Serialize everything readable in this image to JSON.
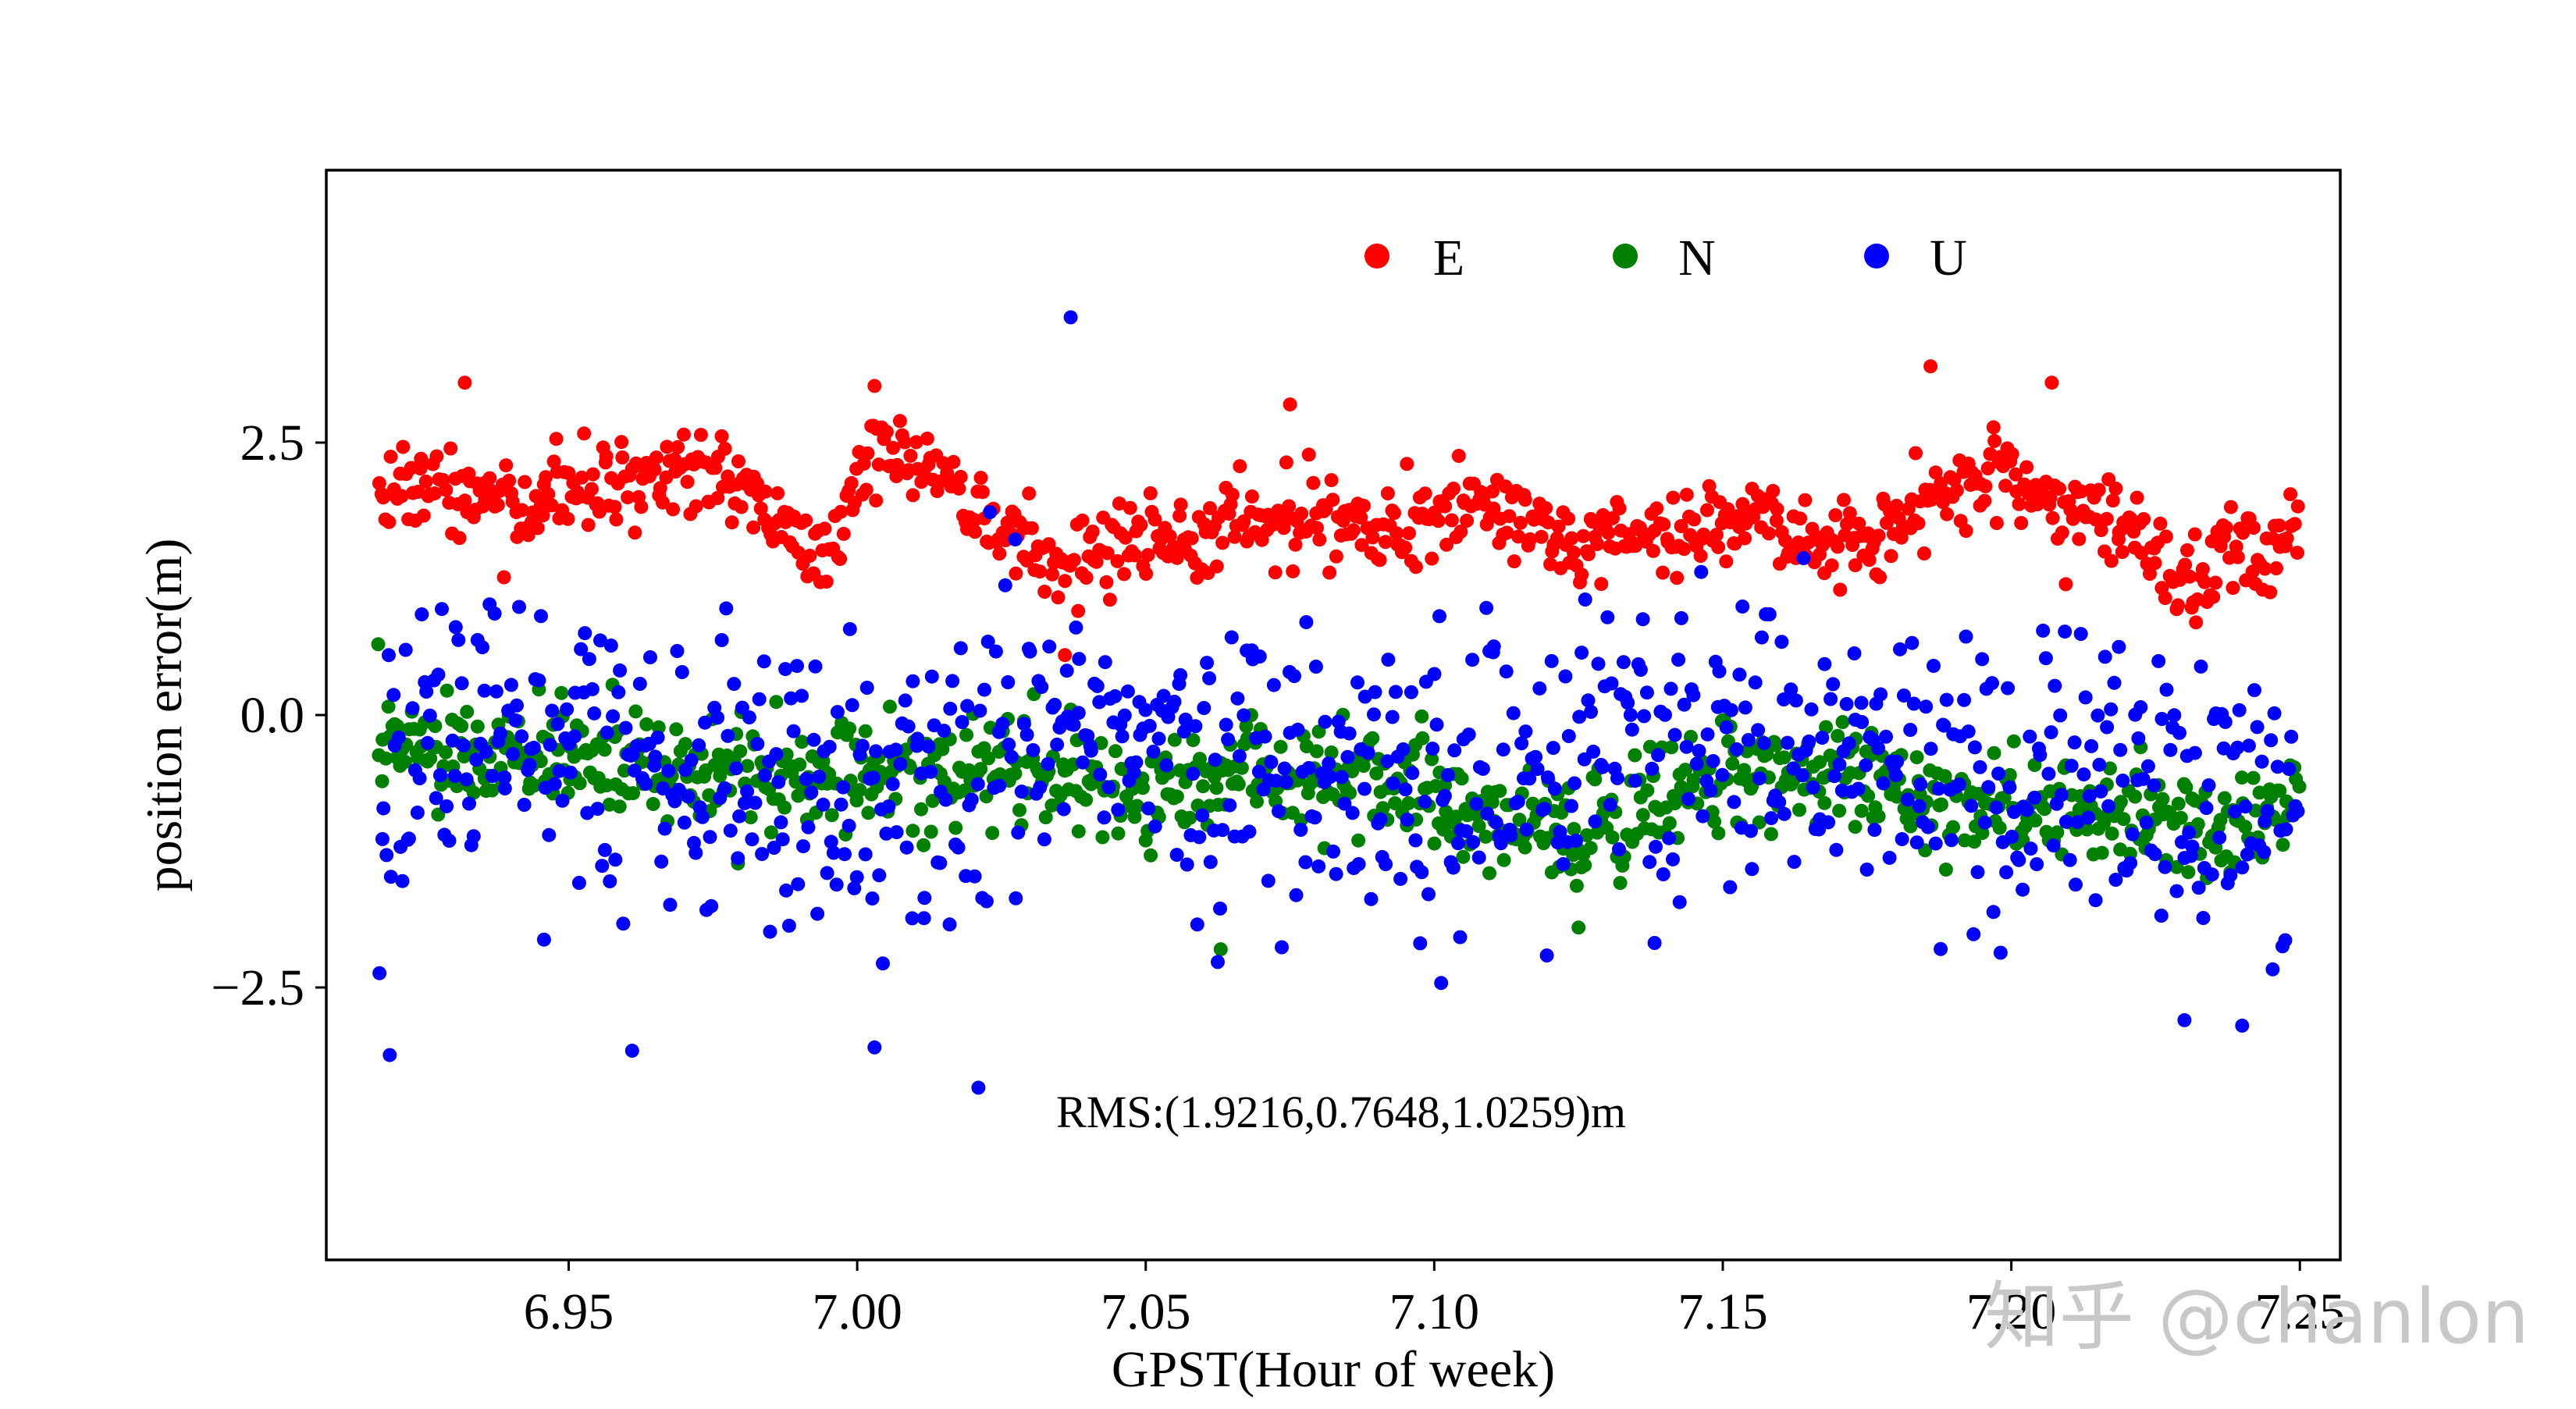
{
  "chart_data": {
    "type": "scatter",
    "title": "",
    "xlabel": "GPST(Hour of week)",
    "ylabel": "position error(m)",
    "xlim": [
      6.908,
      7.257
    ],
    "ylim": [
      -5.0,
      5.0
    ],
    "xticks": [
      6.95,
      7.0,
      7.05,
      7.1,
      7.15,
      7.2,
      7.25
    ],
    "xtick_labels": [
      "6.95",
      "7.00",
      "7.05",
      "7.10",
      "7.15",
      "7.20",
      "7.25"
    ],
    "yticks": [
      2.5,
      0.0,
      -2.5
    ],
    "ytick_labels": [
      "2.5",
      "0.0",
      "−2.5"
    ],
    "grid": false,
    "legend_position": "top-center",
    "x_range_data": [
      6.917,
      7.25
    ],
    "series": [
      {
        "name": "E",
        "color": "#ff0000",
        "point_count": 860,
        "trend": [
          [
            6.917,
            2.2
          ],
          [
            6.93,
            2.1
          ],
          [
            6.94,
            1.9
          ],
          [
            6.95,
            2.05
          ],
          [
            6.96,
            2.1
          ],
          [
            6.97,
            2.3
          ],
          [
            6.98,
            2.05
          ],
          [
            6.99,
            1.6
          ],
          [
            6.995,
            1.5
          ],
          [
            7.0,
            2.25
          ],
          [
            7.005,
            2.45
          ],
          [
            7.015,
            2.2
          ],
          [
            7.025,
            1.6
          ],
          [
            7.035,
            1.35
          ],
          [
            7.045,
            1.55
          ],
          [
            7.06,
            1.7
          ],
          [
            7.075,
            1.85
          ],
          [
            7.09,
            1.75
          ],
          [
            7.1,
            1.8
          ],
          [
            7.11,
            1.9
          ],
          [
            7.125,
            1.55
          ],
          [
            7.14,
            1.6
          ],
          [
            7.155,
            1.85
          ],
          [
            7.17,
            1.6
          ],
          [
            7.18,
            1.8
          ],
          [
            7.19,
            2.05
          ],
          [
            7.2,
            2.25
          ],
          [
            7.21,
            1.85
          ],
          [
            7.22,
            1.7
          ],
          [
            7.23,
            1.15
          ],
          [
            7.24,
            1.55
          ],
          [
            7.25,
            1.5
          ]
        ],
        "spread": 0.33,
        "outliers": [
          [
            6.932,
            3.05
          ],
          [
            7.003,
            3.02
          ],
          [
            7.075,
            2.85
          ],
          [
            7.186,
            3.2
          ],
          [
            7.207,
            3.05
          ],
          [
            7.232,
            0.85
          ],
          [
            7.036,
            0.55
          ]
        ]
      },
      {
        "name": "N",
        "color": "#008000",
        "point_count": 900,
        "trend": [
          [
            6.917,
            -0.25
          ],
          [
            6.93,
            -0.25
          ],
          [
            6.95,
            -0.35
          ],
          [
            6.97,
            -0.55
          ],
          [
            6.99,
            -0.55
          ],
          [
            7.01,
            -0.5
          ],
          [
            7.03,
            -0.5
          ],
          [
            7.05,
            -0.75
          ],
          [
            7.07,
            -0.5
          ],
          [
            7.09,
            -0.6
          ],
          [
            7.11,
            -0.95
          ],
          [
            7.13,
            -1.05
          ],
          [
            7.15,
            -0.5
          ],
          [
            7.17,
            -0.45
          ],
          [
            7.19,
            -0.75
          ],
          [
            7.21,
            -0.85
          ],
          [
            7.23,
            -1.0
          ],
          [
            7.25,
            -0.85
          ]
        ],
        "spread": 0.4,
        "outliers": [
          [
            6.917,
            0.65
          ],
          [
            7.063,
            -2.15
          ],
          [
            7.125,
            -1.95
          ]
        ]
      },
      {
        "name": "U",
        "color": "#0000ff",
        "point_count": 820,
        "trend": [
          [
            6.917,
            -0.45
          ],
          [
            6.94,
            -0.15
          ],
          [
            6.96,
            -0.55
          ],
          [
            6.98,
            -0.4
          ],
          [
            7.0,
            -0.8
          ],
          [
            7.02,
            -0.1
          ],
          [
            7.04,
            -0.3
          ],
          [
            7.06,
            -0.45
          ],
          [
            7.08,
            -0.35
          ],
          [
            7.1,
            -0.7
          ],
          [
            7.12,
            -0.55
          ],
          [
            7.14,
            -0.3
          ],
          [
            7.16,
            -0.2
          ],
          [
            7.18,
            -0.45
          ],
          [
            7.2,
            -0.7
          ],
          [
            7.22,
            -0.55
          ],
          [
            7.24,
            -0.8
          ],
          [
            7.25,
            -0.85
          ]
        ],
        "spread": 1.05,
        "outliers": [
          [
            7.037,
            3.65
          ],
          [
            6.919,
            -3.12
          ],
          [
            6.961,
            -3.08
          ],
          [
            7.003,
            -3.05
          ],
          [
            7.021,
            -3.42
          ],
          [
            7.24,
            -2.85
          ],
          [
            7.23,
            -2.8
          ]
        ]
      }
    ],
    "annotation": "RMS:(1.9216,0.7648,1.0259)m",
    "watermark": "知乎 @chanlon"
  },
  "colors": {
    "E": "#ff0000",
    "N": "#008000",
    "U": "#0000ff",
    "axes": "#000000",
    "background": "#ffffff"
  }
}
